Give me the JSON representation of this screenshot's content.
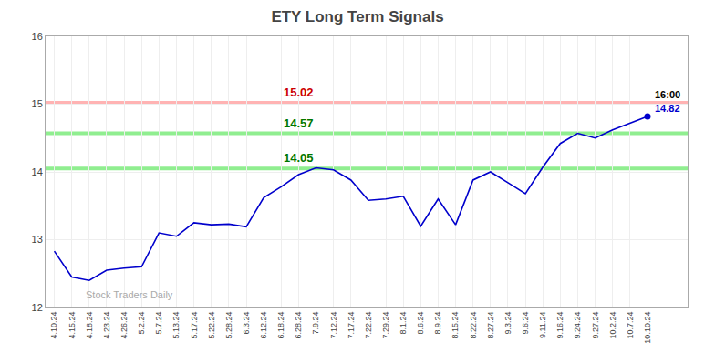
{
  "chart_data": {
    "type": "line",
    "title": "ETY Long Term Signals",
    "categories": [
      "4.10.24",
      "4.15.24",
      "4.18.24",
      "4.23.24",
      "4.26.24",
      "5.2.24",
      "5.7.24",
      "5.13.24",
      "5.17.24",
      "5.22.24",
      "5.28.24",
      "6.3.24",
      "6.12.24",
      "6.18.24",
      "6.28.24",
      "7.9.24",
      "7.12.24",
      "7.17.24",
      "7.22.24",
      "7.29.24",
      "8.1.24",
      "8.6.24",
      "8.9.24",
      "8.15.24",
      "8.22.24",
      "8.27.24",
      "9.3.24",
      "9.6.24",
      "9.11.24",
      "9.16.24",
      "9.24.24",
      "9.27.24",
      "10.2.24",
      "10.7.24",
      "10.10.24"
    ],
    "values": [
      12.83,
      12.45,
      12.4,
      12.55,
      12.58,
      12.6,
      13.1,
      13.05,
      13.25,
      13.22,
      13.23,
      13.19,
      13.62,
      13.78,
      13.96,
      14.06,
      14.03,
      13.88,
      13.58,
      13.6,
      13.64,
      13.2,
      13.6,
      13.22,
      13.88,
      14.0,
      13.84,
      13.68,
      14.07,
      14.42,
      14.57,
      14.5,
      14.62,
      14.72,
      14.82
    ],
    "color": "#0000cc",
    "ylim": [
      12,
      16
    ],
    "yticks": [
      12,
      13,
      14,
      15,
      16
    ],
    "grid": true,
    "hlines": [
      {
        "value": 15.02,
        "label": "15.02",
        "color": "#ffb3b3",
        "label_color": "#cc0000"
      },
      {
        "value": 14.57,
        "label": "14.57",
        "color": "#90ee90",
        "label_color": "#007700"
      },
      {
        "value": 14.05,
        "label": "14.05",
        "color": "#90ee90",
        "label_color": "#007700"
      }
    ],
    "watermark": {
      "text": "Stock Traders Daily",
      "color": "#aaaaaa"
    },
    "final_annotation": {
      "label": "16:00",
      "value": 14.82,
      "value_label": "14.82"
    }
  }
}
